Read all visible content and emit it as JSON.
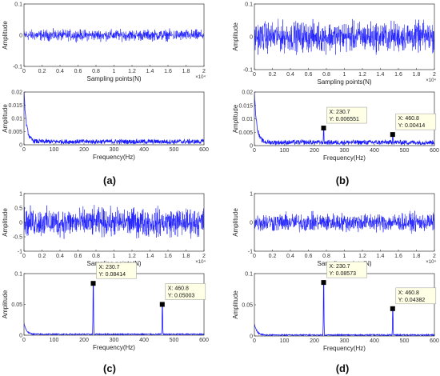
{
  "chart_data": [
    {
      "id": "a-top",
      "type": "line",
      "xlabel": "Sampling points(N)",
      "ylabel": "Amplitude",
      "xlim": [
        0,
        2
      ],
      "ylim": [
        -0.1,
        0.1
      ],
      "xticks": [
        "0",
        "0.2",
        "0.4",
        "0.6",
        "0.8",
        "1",
        "1.2",
        "1.4",
        "1.6",
        "1.8",
        "2"
      ],
      "yticks": [
        "-0.1",
        "0",
        "0.1"
      ],
      "x_exponent": "×10⁴",
      "series": [
        {
          "kind": "noise",
          "band": 0.025,
          "color": "#1a1aff"
        }
      ]
    },
    {
      "id": "a-bottom",
      "type": "line",
      "xlabel": "Frequency(Hz)",
      "ylabel": "Amplitude",
      "xlim": [
        0,
        600
      ],
      "ylim": [
        0,
        0.02
      ],
      "xticks": [
        "0",
        "100",
        "200",
        "300",
        "400",
        "500",
        "600"
      ],
      "yticks": [
        "0",
        "0.005",
        "0.01",
        "0.015",
        "0.02"
      ],
      "series": [
        {
          "kind": "spectrum",
          "start": 0.02,
          "decay": 8,
          "floor": 0.0012,
          "color": "#1a1aff"
        }
      ]
    },
    {
      "id": "b-top",
      "type": "line",
      "xlabel": "Sampling points(N)",
      "ylabel": "Amplitude",
      "xlim": [
        0,
        2
      ],
      "ylim": [
        -0.1,
        0.1
      ],
      "xticks": [
        "0",
        "0.2",
        "0.4",
        "0.6",
        "0.8",
        "1",
        "1.2",
        "1.4",
        "1.6",
        "1.8",
        "2"
      ],
      "yticks": [
        "-0.1",
        "0",
        "0.1"
      ],
      "x_exponent": "×10⁴",
      "series": [
        {
          "kind": "noise",
          "band": 0.065,
          "color": "#1a1aff"
        }
      ]
    },
    {
      "id": "b-bottom",
      "type": "line",
      "xlabel": "Frequency(Hz)",
      "ylabel": "Amplitude",
      "xlim": [
        0,
        600
      ],
      "ylim": [
        0,
        0.02
      ],
      "xticks": [
        "0",
        "100",
        "200",
        "300",
        "400",
        "500",
        "600"
      ],
      "yticks": [
        "0",
        "0.005",
        "0.01",
        "0.015",
        "0.02"
      ],
      "series": [
        {
          "kind": "spectrum",
          "start": 0.02,
          "decay": 8,
          "floor": 0.0012,
          "color": "#1a1aff",
          "peaks": [
            {
              "x": 230.7,
              "y": 0.006551
            },
            {
              "x": 460.8,
              "y": 0.00414
            }
          ]
        }
      ],
      "datatips": [
        {
          "x": 230.7,
          "y": 0.006551,
          "line1": "X: 230.7",
          "line2": "Y: 0.006551"
        },
        {
          "x": 460.8,
          "y": 0.00414,
          "line1": "X: 460.8",
          "line2": "Y: 0.00414"
        }
      ]
    },
    {
      "id": "c-top",
      "type": "line",
      "xlabel": "Sampling points(N)",
      "ylabel": "Amplitude",
      "xlim": [
        0,
        2
      ],
      "ylim": [
        -1,
        1
      ],
      "xticks": [
        "0",
        "0.2",
        "0.4",
        "0.6",
        "0.8",
        "1",
        "1.2",
        "1.4",
        "1.6",
        "1.8",
        "2"
      ],
      "yticks": [
        "-1",
        "-0.5",
        "0",
        "0.5",
        "1"
      ],
      "x_exponent": "×10⁴",
      "series": [
        {
          "kind": "noise",
          "band": 0.7,
          "color": "#1a1aff"
        }
      ]
    },
    {
      "id": "c-bottom",
      "type": "line",
      "xlabel": "Frequency(Hz)",
      "ylabel": "Amplitude",
      "xlim": [
        0,
        600
      ],
      "ylim": [
        0,
        0.1
      ],
      "xticks": [
        "0",
        "100",
        "200",
        "300",
        "400",
        "500",
        "600"
      ],
      "yticks": [
        "0",
        "0.05",
        "0.1"
      ],
      "series": [
        {
          "kind": "spectrum",
          "start": 0.02,
          "decay": 8,
          "floor": 0.0015,
          "color": "#1a1aff",
          "peaks": [
            {
              "x": 230.7,
              "y": 0.08414
            },
            {
              "x": 460.8,
              "y": 0.05003
            }
          ]
        }
      ],
      "datatips": [
        {
          "x": 230.7,
          "y": 0.08414,
          "line1": "X: 230.7",
          "line2": "Y: 0.08414"
        },
        {
          "x": 460.8,
          "y": 0.05003,
          "line1": "X: 460.8",
          "line2": "Y: 0.05003"
        }
      ]
    },
    {
      "id": "d-top",
      "type": "line",
      "xlabel": "Sampling points(N)",
      "ylabel": "Amplitude",
      "xlim": [
        0,
        2
      ],
      "ylim": [
        -1,
        1
      ],
      "xticks": [
        "0",
        "0.2",
        "0.4",
        "0.6",
        "0.8",
        "1",
        "1.2",
        "1.4",
        "1.6",
        "1.8",
        "2"
      ],
      "yticks": [
        "-1",
        "0",
        "1"
      ],
      "x_exponent": "×10⁴",
      "series": [
        {
          "kind": "noise",
          "band": 0.45,
          "color": "#1a1aff"
        }
      ]
    },
    {
      "id": "d-bottom",
      "type": "line",
      "xlabel": "Frequency(Hz)",
      "ylabel": "Amplitude",
      "xlim": [
        0,
        600
      ],
      "ylim": [
        0,
        0.1
      ],
      "xticks": [
        "0",
        "100",
        "200",
        "300",
        "400",
        "500",
        "600"
      ],
      "yticks": [
        "0",
        "0.05",
        "0.1"
      ],
      "series": [
        {
          "kind": "spectrum",
          "start": 0.02,
          "decay": 8,
          "floor": 0.0015,
          "color": "#1a1aff",
          "peaks": [
            {
              "x": 230.7,
              "y": 0.08573
            },
            {
              "x": 460.8,
              "y": 0.04382
            }
          ]
        }
      ],
      "datatips": [
        {
          "x": 230.7,
          "y": 0.08573,
          "line1": "X: 230.7",
          "line2": "Y: 0.08573"
        },
        {
          "x": 460.8,
          "y": 0.04382,
          "line1": "X: 460.8",
          "line2": "Y: 0.04382"
        }
      ]
    }
  ],
  "captions": {
    "a": "(a)",
    "b": "(b)",
    "c": "(c)",
    "d": "(d)"
  }
}
